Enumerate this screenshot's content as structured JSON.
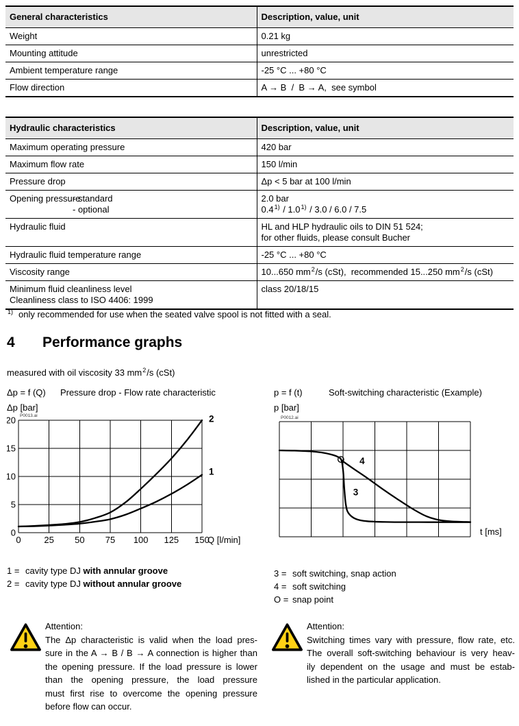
{
  "colors": {
    "header_bg": "#e6e6e6",
    "line": "#000000",
    "warning_yellow": "#ffd215"
  },
  "general_table": {
    "col1_header": "General characteristics",
    "col2_header": "Description, value, unit",
    "rows": [
      {
        "label": "Weight",
        "value": "0.21 kg"
      },
      {
        "label": "Mounting attitude",
        "value": "unrestricted"
      },
      {
        "label": "Ambient temperature range",
        "value": "-25 °C ... +80 °C"
      },
      {
        "label": "Flow direction",
        "value": "A → B  /  B → A,  see symbol"
      }
    ]
  },
  "hydraulic_table": {
    "col1_header": "Hydraulic characteristics",
    "col2_header": "Description, value, unit",
    "max_pressure": {
      "label": "Maximum operating pressure",
      "value": "420 bar"
    },
    "max_flow": {
      "label": "Maximum flow rate",
      "value": "150 l/min"
    },
    "pressure_drop": {
      "label": "Pressure drop",
      "value": "Δp < 5 bar at 100 l/min"
    },
    "opening_pressure": {
      "label": "Opening pressure",
      "sub_standard": "- standard",
      "sub_optional": "- optional",
      "value_standard": "2.0 bar",
      "optional_parts": {
        "p1": "0.4",
        "s1": "1)",
        "p2": " / 1.0",
        "s2": "1)",
        "p3": " / 3.0 / 6.0 / 7.5"
      }
    },
    "fluid": {
      "label": "Hydraulic fluid",
      "value_line1": "HL and HLP hydraulic oils to DIN 51 524;",
      "value_line2": "for other fluids, please consult Bucher"
    },
    "fluid_temp": {
      "label": "Hydraulic fluid temperature range",
      "value": "-25 °C ... +80 °C"
    },
    "viscosity": {
      "label": "Viscosity range",
      "parts": {
        "p1": "10...650 mm",
        "s1": "2",
        "p2": "/s (cSt),  recommended 15...250 mm",
        "s2": "2",
        "p3": "/s (cSt)"
      }
    },
    "cleanliness": {
      "label_line1": "Minimum fluid cleanliness level",
      "label_line2": "Cleanliness class to ISO 4406: 1999",
      "value": "class 20/18/15"
    }
  },
  "footnote": {
    "marker": "1)",
    "text": "only recommended for use when the seated valve spool is not fitted with a seal."
  },
  "section": {
    "number": "4",
    "title": "Performance graphs"
  },
  "measured_note": {
    "p1": "measured with oil viscosity 33 mm",
    "s1": "2",
    "p2": "/s (cSt)"
  },
  "chart_data": [
    {
      "type": "line",
      "equation": "Δp = f (Q)",
      "title": "Pressure drop - Flow rate characteristic",
      "ylabel": "Δp [bar]",
      "xlabel": "Q [l/min]",
      "watermark": "P0013.ai",
      "xlim": [
        0,
        150
      ],
      "ylim": [
        0,
        20
      ],
      "xticks": [
        0,
        25,
        50,
        75,
        100,
        125,
        150
      ],
      "yticks": [
        0,
        5,
        10,
        15,
        20
      ],
      "series": [
        {
          "name": "1 - cavity type DJ with annular groove",
          "x": [
            0,
            12.5,
            25,
            37.5,
            50,
            62.5,
            75,
            87.5,
            100,
            112.5,
            125,
            137.5,
            150
          ],
          "y": [
            1.1,
            1.15,
            1.25,
            1.4,
            1.6,
            1.95,
            2.4,
            3.2,
            4.3,
            5.5,
            6.9,
            8.5,
            10.3
          ]
        },
        {
          "name": "2 - cavity type DJ without annular groove",
          "x": [
            0,
            12.5,
            25,
            37.5,
            50,
            62.5,
            75,
            87.5,
            100,
            112.5,
            125,
            137.5,
            150
          ],
          "y": [
            1.1,
            1.2,
            1.35,
            1.55,
            1.9,
            2.6,
            3.6,
            5.4,
            7.8,
            10.4,
            13.2,
            16.4,
            20.0
          ]
        }
      ],
      "curve_labels": [
        {
          "text": "2",
          "x": 150,
          "y": 20.2
        },
        {
          "text": "1",
          "x": 150,
          "y": 10.8
        }
      ],
      "legend": [
        {
          "key": "1 =",
          "pre": "cavity type DJ ",
          "bold": "with annular groove"
        },
        {
          "key": "2 =",
          "pre": "cavity type DJ ",
          "bold": "without annular groove"
        }
      ]
    },
    {
      "type": "line",
      "equation": "p = f (t)",
      "title": "Soft-switching characteristic (Example)",
      "ylabel": "p [bar]",
      "xlabel": "t [ms]",
      "watermark": "P0012.ai",
      "grid_cols": 6,
      "grid_rows": 4,
      "series": [
        {
          "name": "3 - soft switching, snap action",
          "points": [
            [
              0,
              0.25
            ],
            [
              0.08,
              0.252
            ],
            [
              0.16,
              0.258
            ],
            [
              0.22,
              0.268
            ],
            [
              0.27,
              0.285
            ],
            [
              0.305,
              0.305
            ],
            [
              0.325,
              0.335
            ],
            [
              0.334,
              0.43
            ],
            [
              0.34,
              0.58
            ],
            [
              0.348,
              0.72
            ],
            [
              0.362,
              0.795
            ],
            [
              0.4,
              0.845
            ],
            [
              0.46,
              0.865
            ],
            [
              0.58,
              0.872
            ],
            [
              0.78,
              0.873
            ],
            [
              1,
              0.873
            ]
          ]
        },
        {
          "name": "4 - soft switching",
          "points": [
            [
              0.325,
              0.335
            ],
            [
              0.38,
              0.4
            ],
            [
              0.46,
              0.49
            ],
            [
              0.54,
              0.585
            ],
            [
              0.62,
              0.675
            ],
            [
              0.7,
              0.76
            ],
            [
              0.77,
              0.822
            ],
            [
              0.83,
              0.852
            ],
            [
              0.9,
              0.866
            ],
            [
              1,
              0.872
            ]
          ]
        }
      ],
      "snap_point": [
        0.322,
        0.328
      ],
      "curve_labels": [
        {
          "text": "4",
          "x": 0.42,
          "y": 0.345
        },
        {
          "text": "3",
          "x": 0.386,
          "y": 0.615
        }
      ],
      "legend": [
        {
          "key": "3 =",
          "text": "soft switching, snap action"
        },
        {
          "key": "4 =",
          "text": "soft switching"
        },
        {
          "key": "O =",
          "text": "snap point"
        }
      ]
    }
  ],
  "attention_left": {
    "heading": "Attention:",
    "lines": [
      "The Δp characteristic is valid when the load pres-",
      "sure in the A → B / B → A connection is higher than",
      "the opening pressure. If the load pressure is lower",
      "than the opening pressure, the load pressure",
      "must first rise to overcome the opening pressure",
      "before flow can occur."
    ]
  },
  "attention_right": {
    "heading": "Attention:",
    "lines": [
      "Switching times vary with pressure, flow rate, etc.",
      "The overall soft-switching behaviour is very heav-",
      "ily dependent on the usage and must be estab-",
      "lished in the particular application."
    ]
  }
}
